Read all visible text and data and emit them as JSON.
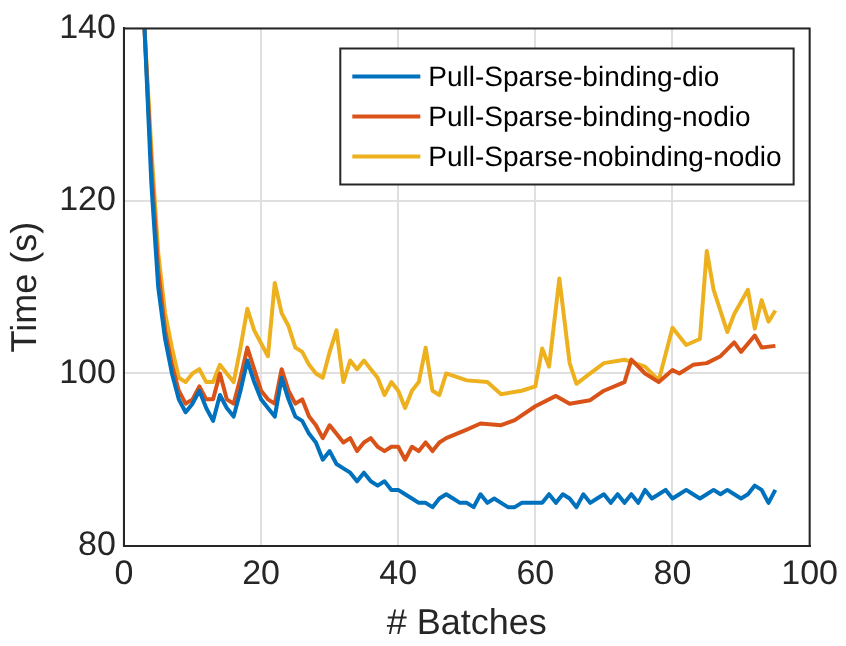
{
  "chart_data": {
    "type": "line",
    "xlabel": "# Batches",
    "ylabel": "Time (s)",
    "xlim": [
      0,
      100
    ],
    "ylim": [
      80,
      140
    ],
    "xticks": [
      0,
      20,
      40,
      60,
      80,
      100
    ],
    "yticks": [
      80,
      100,
      120,
      140
    ],
    "grid": true,
    "legend": "top right",
    "marker": "none",
    "line_style": "solid",
    "series": [
      {
        "name": "Pull-Sparse-binding-dio",
        "color": "#0072bd",
        "x": [
          3,
          4,
          5,
          6,
          7,
          8,
          9,
          10,
          11,
          12,
          13,
          14,
          15,
          16,
          17,
          18,
          19,
          20,
          21,
          22,
          23,
          24,
          25,
          26,
          27,
          28,
          29,
          30,
          31,
          32,
          33,
          34,
          35,
          36,
          37,
          38,
          39,
          40,
          41,
          42,
          43,
          44,
          45,
          46,
          47,
          48,
          49,
          50,
          51,
          52,
          53,
          54,
          55,
          56,
          57,
          58,
          59,
          60,
          61,
          62,
          63,
          64,
          65,
          66,
          67,
          68,
          69,
          70,
          71,
          72,
          73,
          74,
          75,
          76,
          77,
          78,
          79,
          80,
          81,
          82,
          83,
          84,
          85,
          86,
          87,
          88,
          89,
          90,
          91,
          92,
          93,
          94,
          95
        ],
        "values": [
          140,
          122,
          110,
          104,
          100,
          97,
          95.5,
          96.5,
          98,
          96,
          94.5,
          97.5,
          96,
          95,
          98,
          101.5,
          99,
          97,
          96,
          95,
          99.5,
          97,
          95,
          94.5,
          93,
          92,
          90,
          91,
          89.5,
          89,
          88.5,
          87.5,
          88.5,
          87.5,
          87,
          87.5,
          86.5,
          86.5,
          86,
          85.5,
          85,
          85,
          84.5,
          85.5,
          86,
          85.5,
          85,
          85,
          84.5,
          86,
          85,
          85.5,
          85,
          84.5,
          84.5,
          85,
          85,
          85,
          85,
          86,
          85,
          86,
          85.5,
          84.5,
          86,
          85,
          85.5,
          86,
          85,
          86,
          85,
          86,
          85,
          86.5,
          85.5,
          86,
          86.5,
          85.5,
          86,
          86.5,
          86,
          85.5,
          86,
          86.5,
          86,
          86.5,
          86,
          85.5,
          86,
          87,
          86.5,
          85,
          86.5
        ]
      },
      {
        "name": "Pull-Sparse-binding-nodio",
        "color": "#d95319",
        "x": [
          3,
          4,
          5,
          6,
          7,
          8,
          9,
          10,
          11,
          12,
          13,
          14,
          15,
          16,
          17,
          18,
          19,
          20,
          21,
          22,
          23,
          24,
          25,
          26,
          27,
          28,
          29,
          30,
          31,
          32,
          33,
          34,
          35,
          36,
          37,
          38,
          39,
          40,
          41,
          42,
          43,
          44,
          45,
          46,
          47,
          50,
          52,
          55,
          57,
          60,
          63,
          65,
          68,
          70,
          73,
          74,
          76,
          78,
          80,
          81,
          83,
          85,
          87,
          89,
          90,
          92,
          93,
          95
        ],
        "values": [
          140,
          124,
          112,
          105,
          101,
          98,
          96.5,
          97,
          98.5,
          97,
          97,
          100,
          97,
          96.5,
          99.5,
          103,
          100.5,
          98,
          97,
          96.5,
          100.5,
          98,
          96.5,
          97,
          95,
          94,
          92.5,
          94,
          93,
          92,
          92.5,
          91,
          92,
          92.5,
          91.5,
          91,
          91.5,
          91.5,
          90,
          91.5,
          91,
          92,
          91,
          92,
          92.5,
          93.5,
          94.2,
          94,
          94.6,
          96.2,
          97.4,
          96.5,
          96.9,
          98,
          99,
          101.6,
          100,
          99,
          100.4,
          100,
          101,
          101.2,
          102,
          103.6,
          102.5,
          104.4,
          103,
          103.2
        ]
      },
      {
        "name": "Pull-Sparse-nobinding-nodio",
        "color": "#edb120",
        "x": [
          3,
          4,
          5,
          6,
          7,
          8,
          9,
          10,
          11,
          12,
          13,
          14,
          15,
          16,
          17,
          18,
          19,
          20,
          21,
          22,
          23,
          24,
          25,
          26,
          27,
          28,
          29,
          30,
          31,
          32,
          33,
          34,
          35,
          36,
          37,
          38,
          39,
          40,
          41,
          42,
          43,
          44,
          45,
          46,
          47,
          50,
          53,
          55,
          58,
          60,
          61,
          62,
          63.5,
          65,
          66,
          68,
          70,
          73,
          76,
          78,
          80,
          82,
          84,
          85,
          86,
          88,
          89,
          91,
          92,
          93,
          94,
          95
        ],
        "values": [
          140,
          126,
          114,
          107,
          103,
          99.5,
          99,
          100,
          100.5,
          99,
          99,
          101,
          100,
          99,
          103,
          107.5,
          105,
          103.5,
          102,
          110.5,
          107,
          105.5,
          103,
          102.5,
          101,
          100,
          99.5,
          102.5,
          105,
          99,
          101.5,
          100.5,
          101.5,
          100.5,
          99.5,
          97.5,
          99,
          98,
          96,
          98,
          99,
          103,
          98,
          97.5,
          100,
          99.2,
          99,
          97.6,
          98,
          98.5,
          102.9,
          100.8,
          111,
          101.2,
          98.8,
          100,
          101.2,
          101.6,
          100.8,
          99.2,
          105.3,
          103.3,
          104,
          114.2,
          109.7,
          104.8,
          106.9,
          109.7,
          105.2,
          108.5,
          106,
          107.3
        ]
      }
    ]
  }
}
